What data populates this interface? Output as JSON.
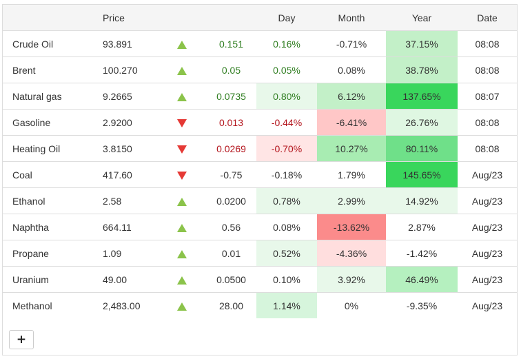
{
  "header": {
    "name": "",
    "price": "Price",
    "arrow": "",
    "change": "",
    "day": "Day",
    "month": "Month",
    "year": "Year",
    "date": "Date"
  },
  "colors": {
    "up_arrow": "#8bc34a",
    "down_arrow": "#e53935",
    "positive_text": "#2e7d1f",
    "negative_text": "#b3141c",
    "header_bg": "#f5f5f5",
    "border": "#dddddd"
  },
  "rows": [
    {
      "name": "Crude Oil",
      "price": "93.891",
      "dir": "up",
      "change": "0.151",
      "day": "0.16%",
      "month": "-0.71%",
      "year": "37.15%",
      "date": "08:08",
      "day_bg": "#ffffff",
      "month_bg": "#ffffff",
      "year_bg": "#c3f0c8",
      "change_class": "up",
      "day_class": "up"
    },
    {
      "name": "Brent",
      "price": "100.270",
      "dir": "up",
      "change": "0.05",
      "day": "0.05%",
      "month": "0.08%",
      "year": "38.78%",
      "date": "08:08",
      "day_bg": "#ffffff",
      "month_bg": "#ffffff",
      "year_bg": "#c3f0c8",
      "change_class": "up",
      "day_class": "up"
    },
    {
      "name": "Natural gas",
      "price": "9.2665",
      "dir": "up",
      "change": "0.0735",
      "day": "0.80%",
      "month": "6.12%",
      "year": "137.65%",
      "date": "08:07",
      "day_bg": "#e8f8ea",
      "month_bg": "#c3f0c8",
      "year_bg": "#39d65c",
      "change_class": "up",
      "day_class": "up"
    },
    {
      "name": "Gasoline",
      "price": "2.9200",
      "dir": "down",
      "change": "0.013",
      "day": "-0.44%",
      "month": "-6.41%",
      "year": "26.76%",
      "date": "08:08",
      "day_bg": "#ffffff",
      "month_bg": "#ffc7c7",
      "year_bg": "#dff7e2",
      "change_class": "dn",
      "day_class": "dn"
    },
    {
      "name": "Heating Oil",
      "price": "3.8150",
      "dir": "down",
      "change": "0.0269",
      "day": "-0.70%",
      "month": "10.27%",
      "year": "80.11%",
      "date": "08:08",
      "day_bg": "#ffe5e5",
      "month_bg": "#a8ecb2",
      "year_bg": "#6fe089",
      "change_class": "dn",
      "day_class": "dn"
    },
    {
      "name": "Coal",
      "price": "417.60",
      "dir": "down",
      "change": "-0.75",
      "day": "-0.18%",
      "month": "1.79%",
      "year": "145.65%",
      "date": "Aug/23",
      "day_bg": "#ffffff",
      "month_bg": "#ffffff",
      "year_bg": "#39d65c",
      "change_class": "neutral",
      "day_class": "neutral"
    },
    {
      "name": "Ethanol",
      "price": "2.58",
      "dir": "up",
      "change": "0.0200",
      "day": "0.78%",
      "month": "2.99%",
      "year": "14.92%",
      "date": "Aug/23",
      "day_bg": "#e8f8ea",
      "month_bg": "#e8f8ea",
      "year_bg": "#e8f8ea",
      "change_class": "neutral",
      "day_class": "neutral"
    },
    {
      "name": "Naphtha",
      "price": "664.11",
      "dir": "up",
      "change": "0.56",
      "day": "0.08%",
      "month": "-13.62%",
      "year": "2.87%",
      "date": "Aug/23",
      "day_bg": "#ffffff",
      "month_bg": "#fb8b8b",
      "year_bg": "#ffffff",
      "change_class": "neutral",
      "day_class": "neutral"
    },
    {
      "name": "Propane",
      "price": "1.09",
      "dir": "up",
      "change": "0.01",
      "day": "0.52%",
      "month": "-4.36%",
      "year": "-1.42%",
      "date": "Aug/23",
      "day_bg": "#e8f8ea",
      "month_bg": "#ffdede",
      "year_bg": "#ffffff",
      "change_class": "neutral",
      "day_class": "neutral"
    },
    {
      "name": "Uranium",
      "price": "49.00",
      "dir": "up",
      "change": "0.0500",
      "day": "0.10%",
      "month": "3.92%",
      "year": "46.49%",
      "date": "Aug/23",
      "day_bg": "#ffffff",
      "month_bg": "#e8f8ea",
      "year_bg": "#b5f0bf",
      "change_class": "neutral",
      "day_class": "neutral"
    },
    {
      "name": "Methanol",
      "price": "2,483.00",
      "dir": "up",
      "change": "28.00",
      "day": "1.14%",
      "month": "0%",
      "year": "-9.35%",
      "date": "Aug/23",
      "day_bg": "#d6f5dc",
      "month_bg": "#ffffff",
      "year_bg": "#ffffff",
      "change_class": "neutral",
      "day_class": "neutral"
    }
  ],
  "add_button": {
    "label": "+",
    "icon": "plus-icon"
  }
}
